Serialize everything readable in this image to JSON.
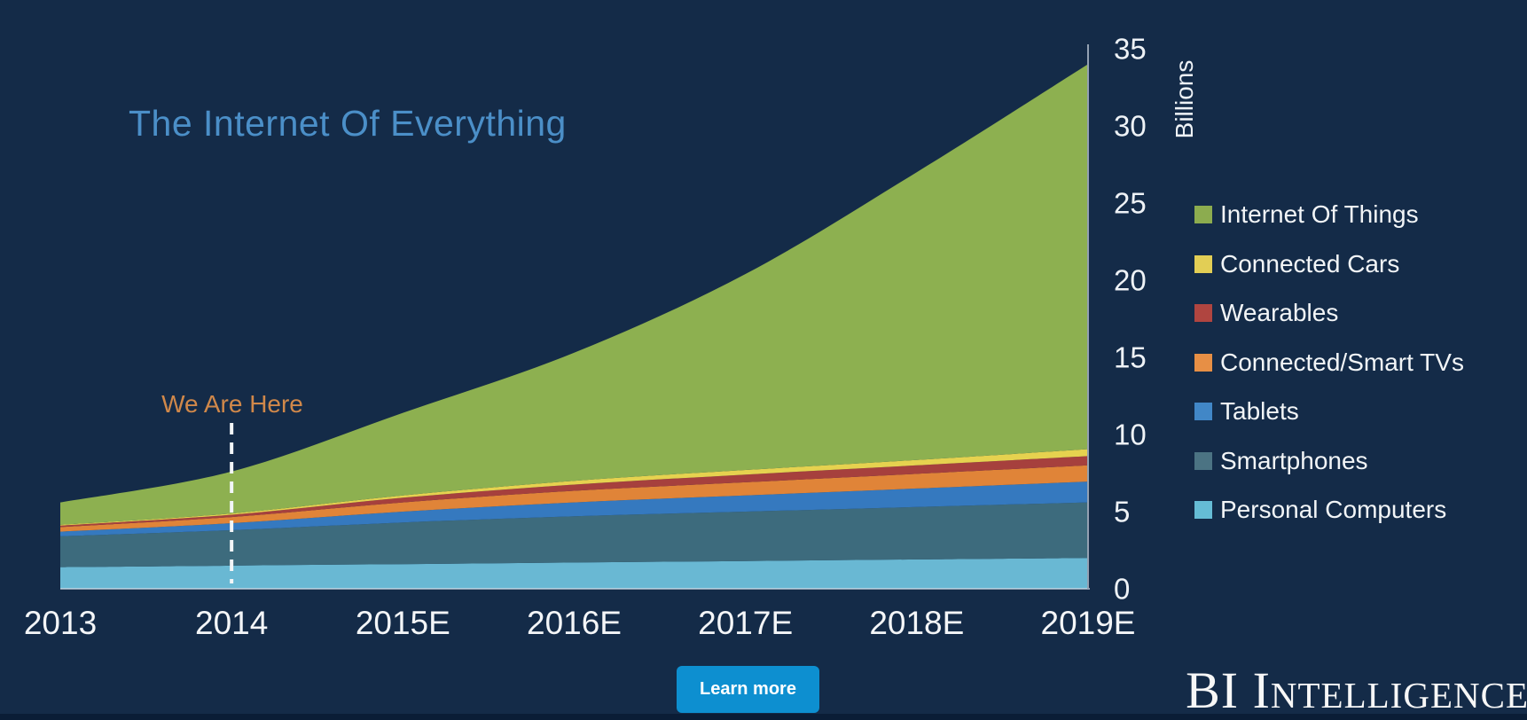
{
  "page": {
    "background_color": "#142b48",
    "bottom_bar_color": "#0a1d36"
  },
  "title": {
    "text": "The Internet Of Everything",
    "color": "#4b8fc8"
  },
  "annotation": {
    "text": "We Are Here",
    "color": "#d0884a",
    "at_category": "2014"
  },
  "y_axis": {
    "unit_label": "Billions",
    "ticks": [
      0,
      5,
      10,
      15,
      20,
      25,
      30,
      35
    ],
    "axis_line_color": "#93a1b2"
  },
  "x_axis": {
    "categories": [
      "2013",
      "2014",
      "2015E",
      "2016E",
      "2017E",
      "2018E",
      "2019E"
    ]
  },
  "legend": {
    "position": "right",
    "items": [
      {
        "label": "Internet Of Things",
        "color": "#8cac4f"
      },
      {
        "label": "Connected Cars",
        "color": "#e2ce55"
      },
      {
        "label": "Wearables",
        "color": "#b04540"
      },
      {
        "label": "Connected/Smart TVs",
        "color": "#e78f45"
      },
      {
        "label": "Tablets",
        "color": "#4187c7"
      },
      {
        "label": "Smartphones",
        "color": "#4b7383"
      },
      {
        "label": "Personal Computers",
        "color": "#65bcd5"
      }
    ]
  },
  "chart_data": {
    "type": "area",
    "stacked": true,
    "title": "The Internet Of Everything",
    "ylabel": "Billions",
    "xlabel": "",
    "ylim": [
      0,
      35
    ],
    "grid": false,
    "legend_position": "right",
    "categories": [
      "2013",
      "2014",
      "2015E",
      "2016E",
      "2017E",
      "2018E",
      "2019E"
    ],
    "series_bottom_to_top": [
      {
        "name": "Personal Computers",
        "color": "#69b8d3",
        "values": [
          1.4,
          1.5,
          1.6,
          1.7,
          1.8,
          1.9,
          2.0
        ]
      },
      {
        "name": "Smartphones",
        "color": "#3d6b7d",
        "values": [
          2.0,
          2.3,
          2.7,
          3.0,
          3.2,
          3.4,
          3.6
        ]
      },
      {
        "name": "Tablets",
        "color": "#3579bf",
        "values": [
          0.3,
          0.45,
          0.7,
          0.9,
          1.05,
          1.2,
          1.35
        ]
      },
      {
        "name": "Connected/Smart TVs",
        "color": "#e08438",
        "values": [
          0.3,
          0.4,
          0.6,
          0.75,
          0.85,
          0.95,
          1.05
        ]
      },
      {
        "name": "Wearables",
        "color": "#a6403d",
        "values": [
          0.1,
          0.15,
          0.3,
          0.4,
          0.5,
          0.55,
          0.6
        ]
      },
      {
        "name": "Connected Cars",
        "color": "#e6d24f",
        "values": [
          0.05,
          0.08,
          0.15,
          0.25,
          0.3,
          0.35,
          0.45
        ]
      },
      {
        "name": "Internet Of Things",
        "color": "#8db050",
        "values": [
          1.45,
          2.72,
          5.35,
          8.3,
          12.7,
          18.65,
          24.95
        ]
      }
    ],
    "totals": [
      5.6,
      7.6,
      11.4,
      15.3,
      20.4,
      27.0,
      34.0
    ],
    "annotation": {
      "text": "We Are Here",
      "at_category": "2014",
      "style": "dashed-vertical-line"
    }
  },
  "cta": {
    "label": "Learn more",
    "color": "#0d8fd0"
  },
  "logo": {
    "text": "BI Intelligence"
  }
}
